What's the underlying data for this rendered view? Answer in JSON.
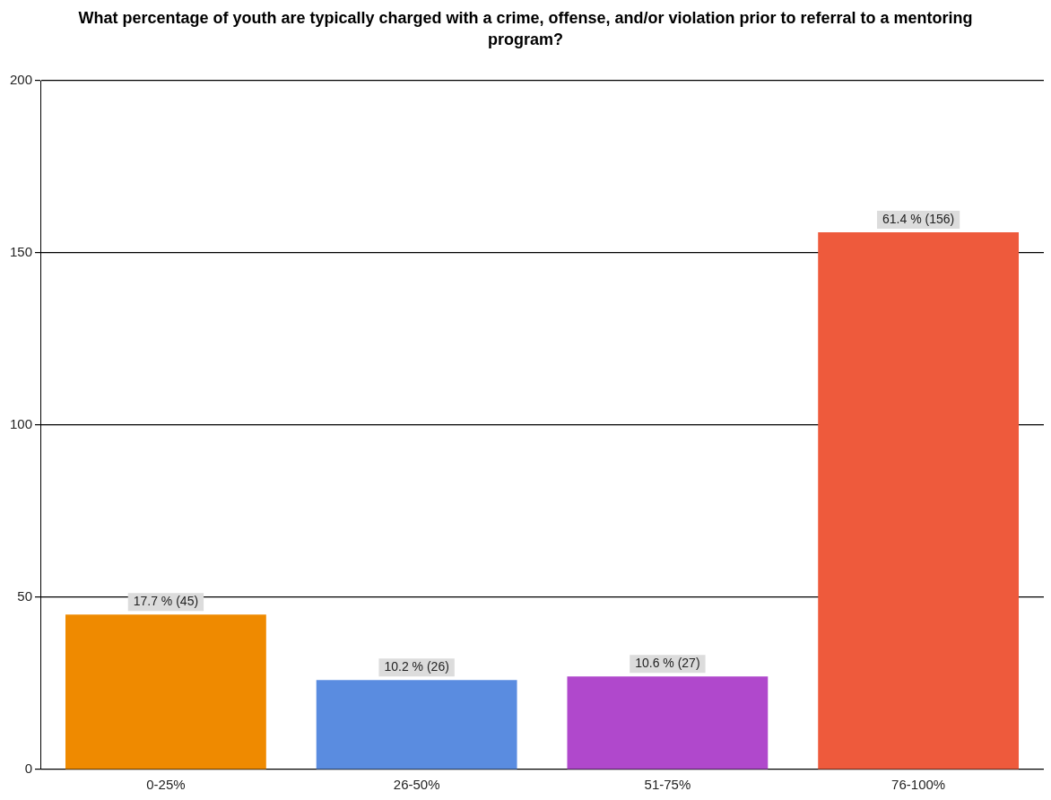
{
  "chart_data": {
    "type": "bar",
    "title": "What percentage of youth are typically charged with a crime, offense, and/or violation prior to referral to a mentoring program?",
    "categories": [
      "0-25%",
      "26-50%",
      "51-75%",
      "76-100%"
    ],
    "values": [
      45,
      26,
      27,
      156
    ],
    "colors": [
      "#ef8a00",
      "#5a8ce0",
      "#b048cc",
      "#ee5a3c"
    ],
    "value_labels": [
      "17.7 % (45)",
      "10.2 % (26)",
      "10.6 % (27)",
      "61.4 % (156)"
    ],
    "ylim": [
      0,
      200
    ],
    "yticks": [
      0,
      50,
      100,
      150,
      200
    ],
    "grid": "y",
    "legend": false
  }
}
